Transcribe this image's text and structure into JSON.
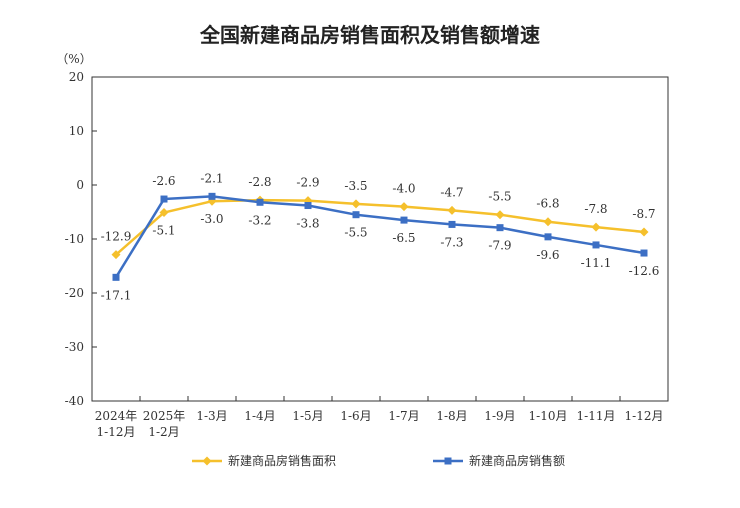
{
  "chart_data": {
    "type": "line",
    "title": "全国新建商品房销售面积及销售额增速",
    "ylabel": "（%）",
    "xlabel": "",
    "ylim": [
      -40,
      20
    ],
    "yticks": [
      20,
      10,
      0,
      -10,
      -20,
      -30,
      -40
    ],
    "categories": [
      [
        "2024年",
        "1-12月"
      ],
      [
        "2025年",
        "1-2月"
      ],
      [
        "1-3月"
      ],
      [
        "1-4月"
      ],
      [
        "1-5月"
      ],
      [
        "1-6月"
      ],
      [
        "1-7月"
      ],
      [
        "1-8月"
      ],
      [
        "1-9月"
      ],
      [
        "1-10月"
      ],
      [
        "1-11月"
      ],
      [
        "1-12月"
      ]
    ],
    "grid": false,
    "legend_position": "bottom",
    "series": [
      {
        "name": "新建商品房销售面积",
        "color": "#f5c02c",
        "marker": "diamond",
        "values": [
          -12.9,
          -5.1,
          -3.0,
          -2.8,
          -2.9,
          -3.5,
          -4.0,
          -4.7,
          -5.5,
          -6.8,
          -7.8,
          -8.7
        ],
        "labels": [
          "-12.9",
          "-5.1",
          "-3.0",
          "-2.8",
          "-2.9",
          "-3.5",
          "-4.0",
          "-4.7",
          "-5.5",
          "-6.8",
          "-7.8",
          "-8.7"
        ]
      },
      {
        "name": "新建商品房销售额",
        "color": "#3c6fc4",
        "marker": "square",
        "values": [
          -17.1,
          -2.6,
          -2.1,
          -3.2,
          -3.8,
          -5.5,
          -6.5,
          -7.3,
          -7.9,
          -9.6,
          -11.1,
          -12.6
        ],
        "labels": [
          "-17.1",
          "-2.6",
          "-2.1",
          "-3.2",
          "-3.8",
          "-5.5",
          "-6.5",
          "-7.3",
          "-7.9",
          "-9.6",
          "-11.1",
          "-12.6"
        ]
      }
    ]
  }
}
